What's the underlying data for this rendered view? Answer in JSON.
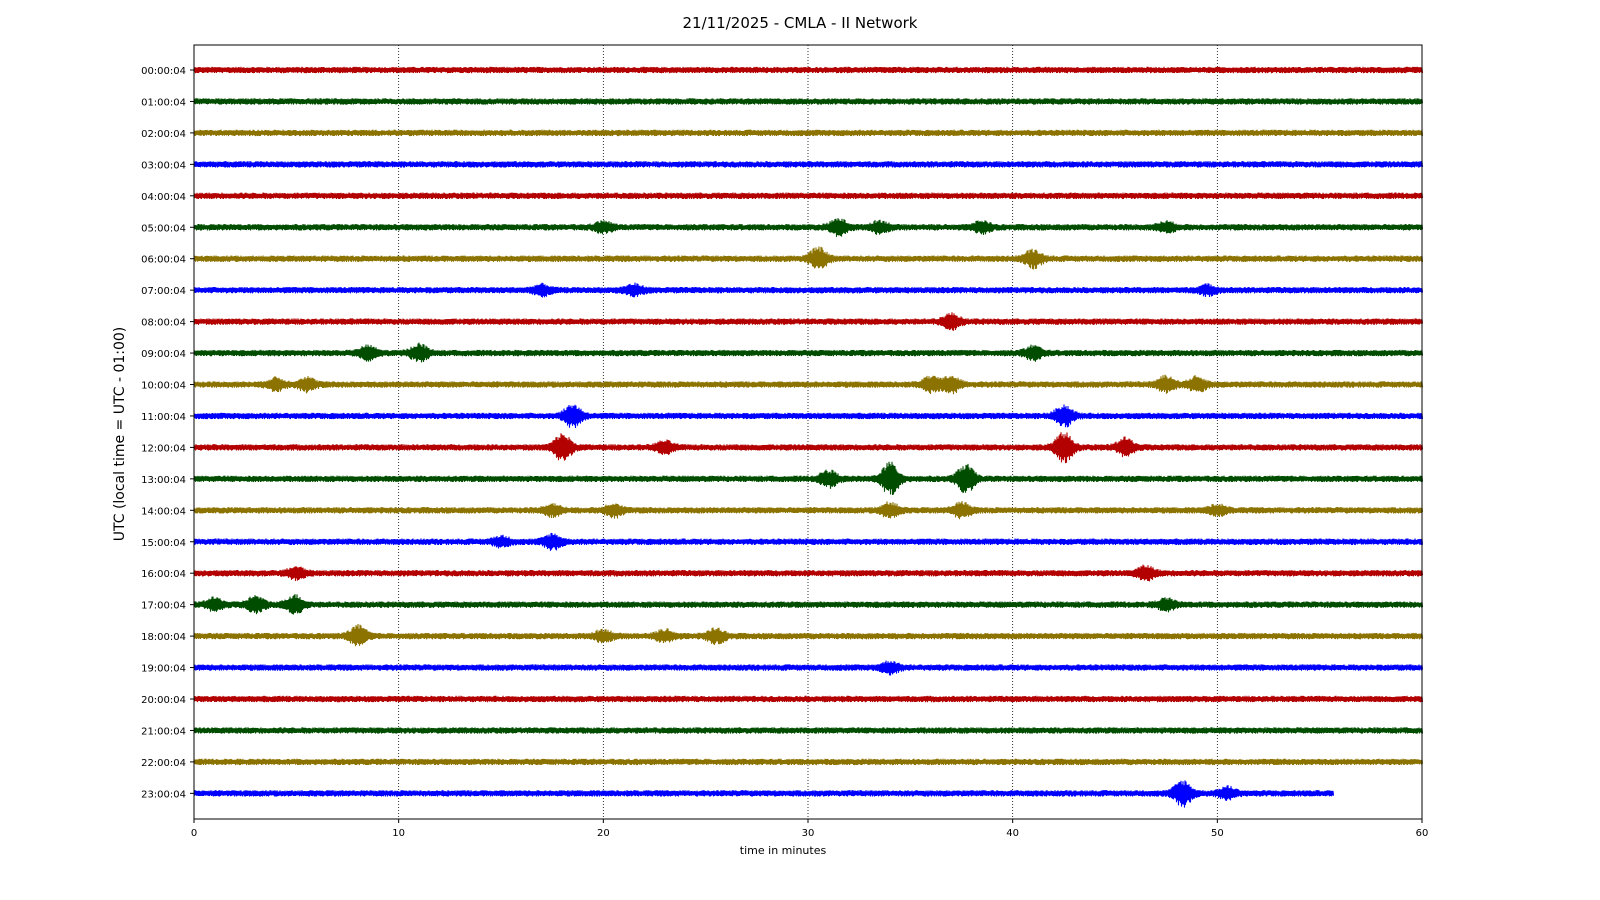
{
  "chart_data": {
    "type": "line",
    "title": "21/11/2025 - CMLA - II Network",
    "xlabel": "time in minutes",
    "ylabel": "UTC (local time = UTC - 01:00)",
    "xlim": [
      0,
      60
    ],
    "x_ticks": [
      "0",
      "10",
      "20",
      "30",
      "40",
      "50",
      "60"
    ],
    "grid": "vertical dotted",
    "colors": [
      "#b30000",
      "#004d00",
      "#8c7300",
      "#0000ff"
    ],
    "series": [
      {
        "name": "00:00:04",
        "end_minute": 60,
        "events": []
      },
      {
        "name": "01:00:04",
        "end_minute": 60,
        "events": []
      },
      {
        "name": "02:00:04",
        "end_minute": 60,
        "events": []
      },
      {
        "name": "03:00:04",
        "end_minute": 60,
        "events": []
      },
      {
        "name": "04:00:04",
        "end_minute": 60,
        "events": []
      },
      {
        "name": "05:00:04",
        "end_minute": 60,
        "events": [
          [
            20,
            1.4
          ],
          [
            31.5,
            2.2
          ],
          [
            33.5,
            1.6
          ],
          [
            38.5,
            1.5
          ],
          [
            47.5,
            1.3
          ]
        ]
      },
      {
        "name": "06:00:04",
        "end_minute": 60,
        "events": [
          [
            30.5,
            3.0
          ],
          [
            41,
            2.4
          ]
        ]
      },
      {
        "name": "07:00:04",
        "end_minute": 60,
        "events": [
          [
            17,
            1.3
          ],
          [
            21.5,
            1.4
          ],
          [
            49.5,
            1.2
          ]
        ]
      },
      {
        "name": "08:00:04",
        "end_minute": 60,
        "events": [
          [
            37,
            2.0
          ]
        ]
      },
      {
        "name": "09:00:04",
        "end_minute": 60,
        "events": [
          [
            8.5,
            1.8
          ],
          [
            11,
            2.4
          ],
          [
            41,
            1.8
          ]
        ]
      },
      {
        "name": "10:00:04",
        "end_minute": 60,
        "events": [
          [
            4,
            1.6
          ],
          [
            5.5,
            1.8
          ],
          [
            36,
            2.0
          ],
          [
            37,
            2.2
          ],
          [
            47.5,
            2.2
          ],
          [
            49,
            2.0
          ]
        ]
      },
      {
        "name": "11:00:04",
        "end_minute": 60,
        "events": [
          [
            18.5,
            3.2
          ],
          [
            42.5,
            3.0
          ]
        ]
      },
      {
        "name": "12:00:04",
        "end_minute": 60,
        "events": [
          [
            18,
            3.8
          ],
          [
            23,
            1.6
          ],
          [
            42.5,
            4.2
          ],
          [
            45.5,
            2.4
          ]
        ]
      },
      {
        "name": "13:00:04",
        "end_minute": 60,
        "events": [
          [
            31,
            2.2
          ],
          [
            34,
            4.6
          ],
          [
            37.7,
            4.0
          ]
        ]
      },
      {
        "name": "14:00:04",
        "end_minute": 60,
        "events": [
          [
            17.5,
            1.5
          ],
          [
            20.5,
            1.8
          ],
          [
            34,
            2.0
          ],
          [
            37.5,
            2.0
          ],
          [
            50,
            1.4
          ]
        ]
      },
      {
        "name": "15:00:04",
        "end_minute": 60,
        "events": [
          [
            15,
            1.3
          ],
          [
            17.5,
            2.0
          ]
        ]
      },
      {
        "name": "16:00:04",
        "end_minute": 60,
        "events": [
          [
            5,
            1.5
          ],
          [
            46.5,
            1.8
          ]
        ]
      },
      {
        "name": "17:00:04",
        "end_minute": 60,
        "events": [
          [
            1,
            1.6
          ],
          [
            3,
            2.2
          ],
          [
            4.9,
            2.5
          ],
          [
            47.5,
            1.5
          ]
        ]
      },
      {
        "name": "18:00:04",
        "end_minute": 60,
        "events": [
          [
            8,
            2.8
          ],
          [
            20,
            1.6
          ],
          [
            23,
            1.6
          ],
          [
            25.5,
            2.0
          ]
        ]
      },
      {
        "name": "19:00:04",
        "end_minute": 60,
        "events": [
          [
            34,
            1.5
          ]
        ]
      },
      {
        "name": "20:00:04",
        "end_minute": 60,
        "events": []
      },
      {
        "name": "21:00:04",
        "end_minute": 60,
        "events": []
      },
      {
        "name": "22:00:04",
        "end_minute": 60,
        "events": []
      },
      {
        "name": "23:00:04",
        "end_minute": 55.7,
        "events": [
          [
            48.3,
            3.6
          ],
          [
            50.5,
            1.6
          ]
        ]
      }
    ]
  }
}
